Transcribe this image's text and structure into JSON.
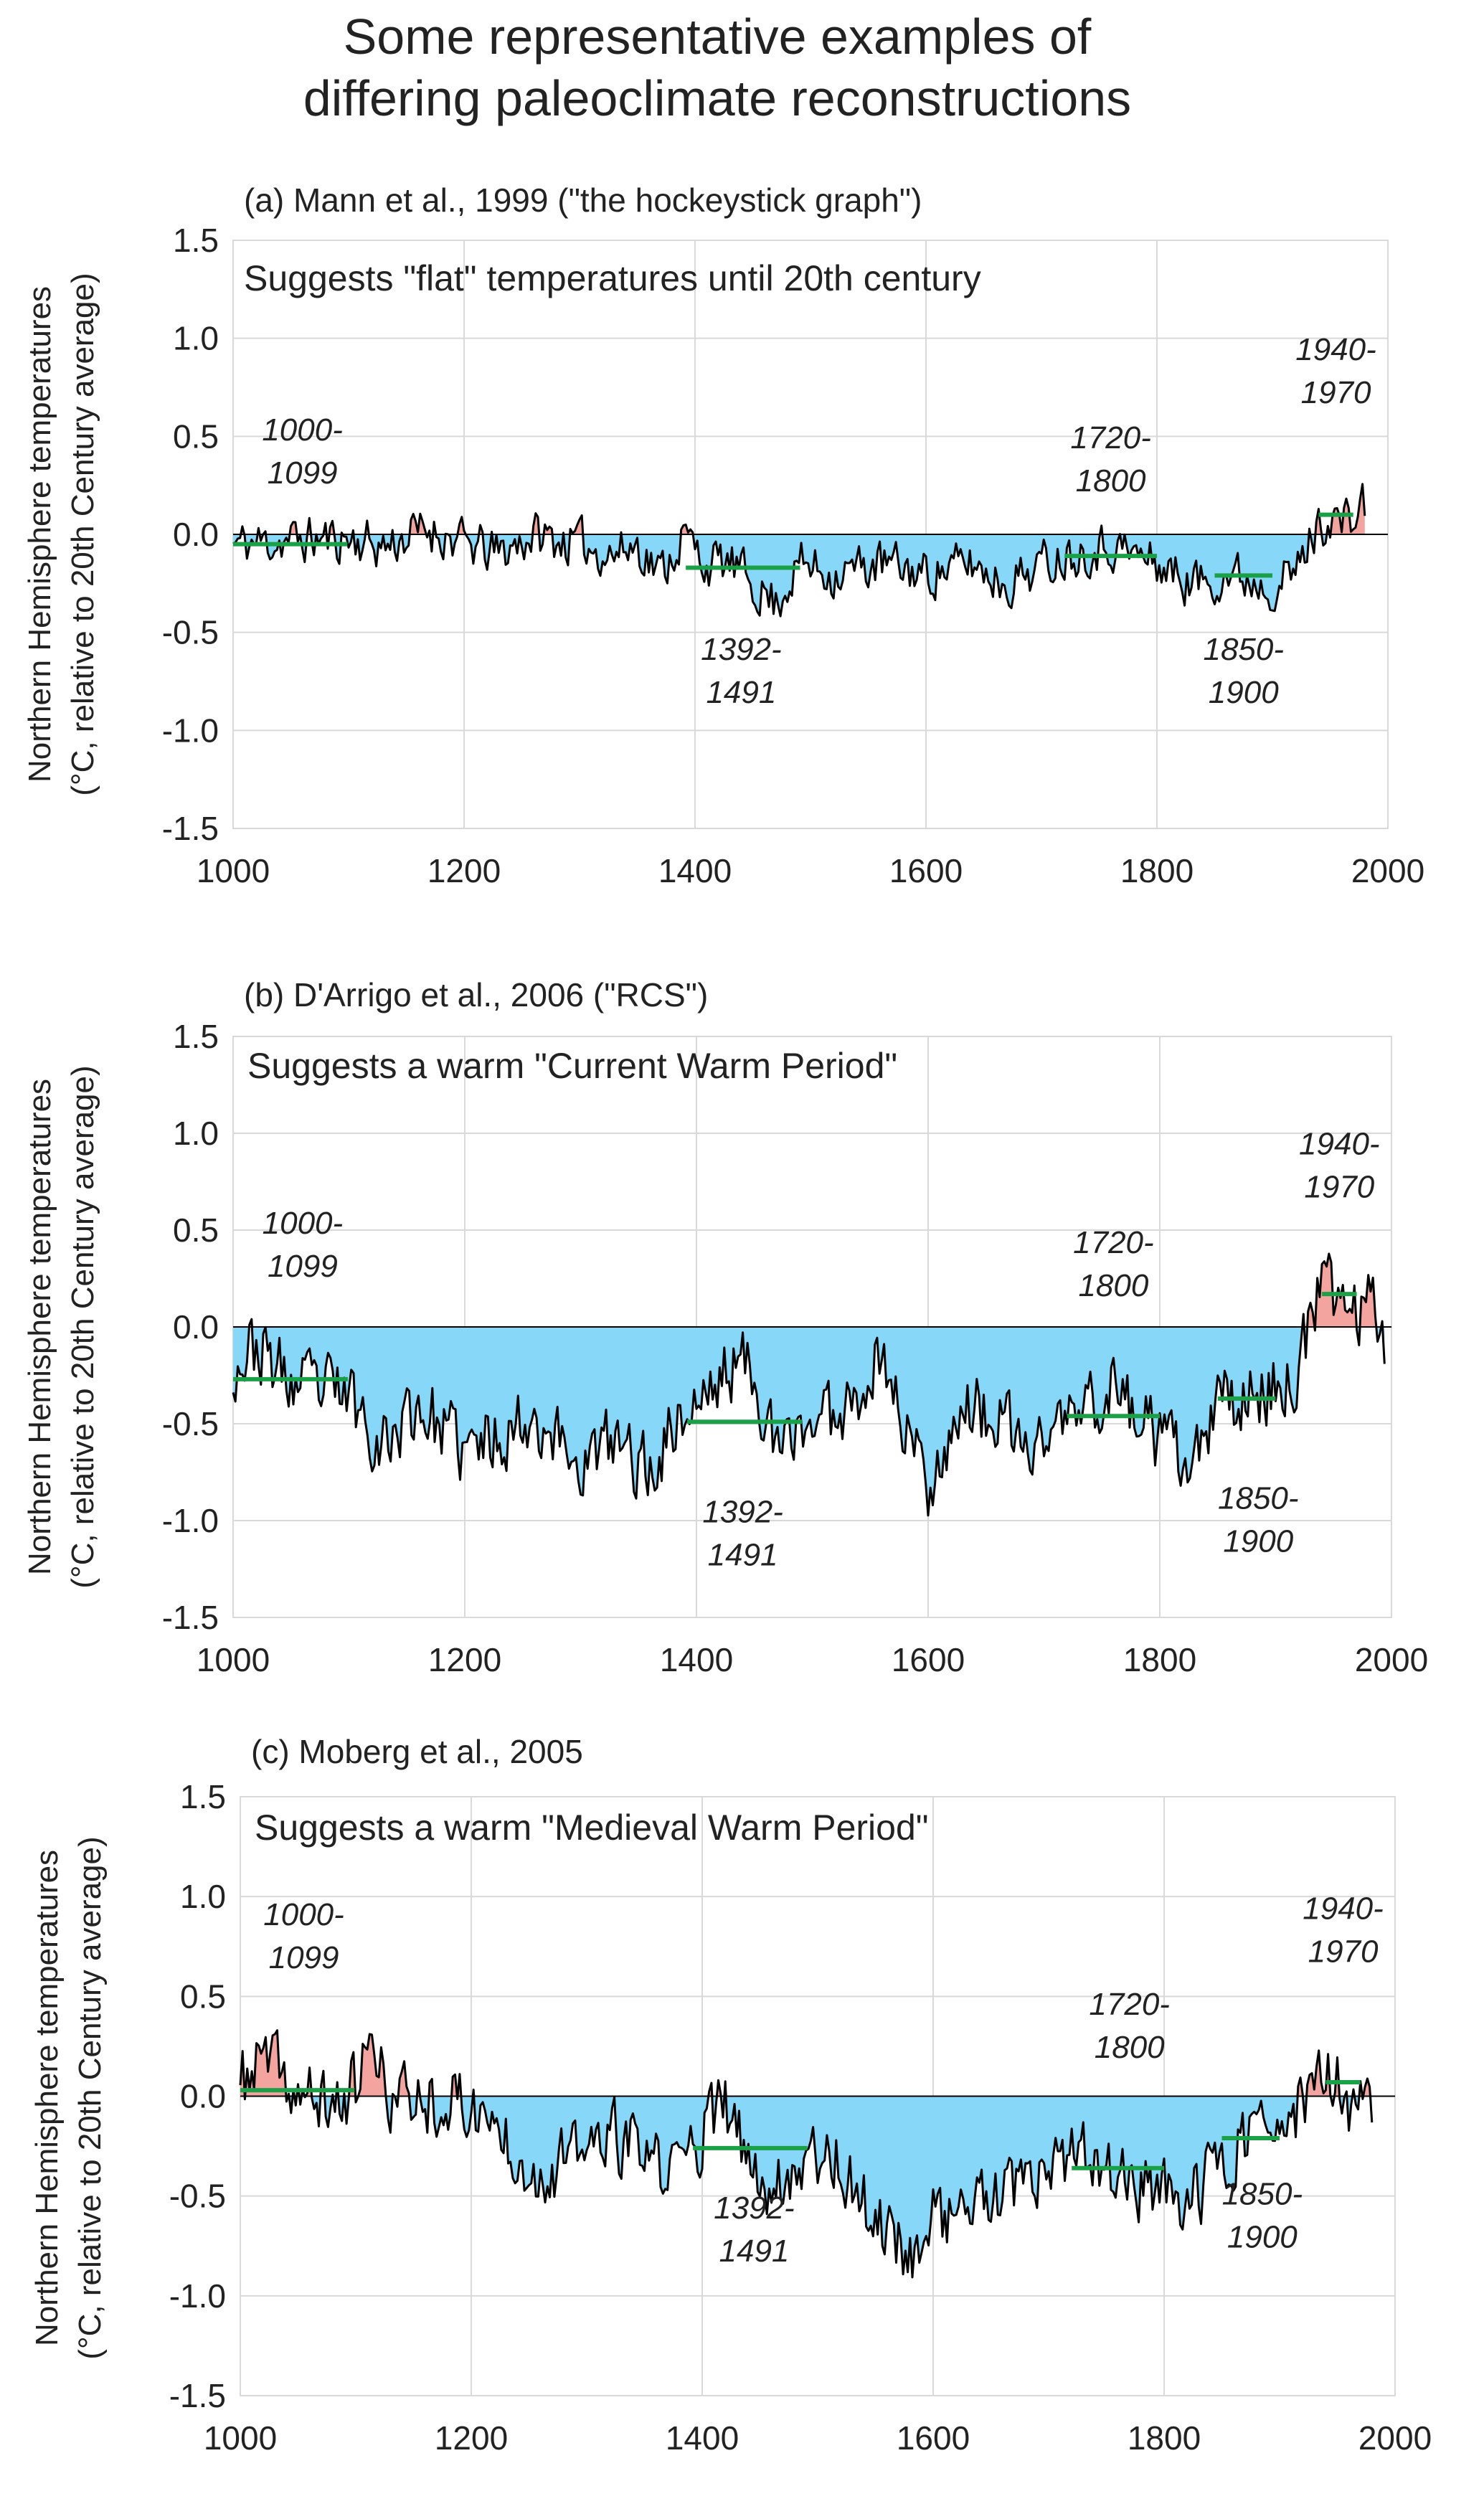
{
  "page_title": {
    "line1": "Some representative examples of",
    "line2": "differing paleoclimate reconstructions"
  },
  "colors": {
    "below_fill": "#87d8f8",
    "above_fill": "#f4a49e",
    "series_line": "#000000",
    "period_mean": "#1aa046",
    "grid": "#d9d9d9"
  },
  "chart_data": [
    {
      "type": "area",
      "title": "(a) Mann et al., 1999 (\"the hockeystick graph\")",
      "note": "Suggests \"flat\" temperatures until 20th century",
      "ylabel_line1": "Northern Hemisphere temperatures",
      "ylabel_line2": "(°C, relative to 20th Century average)",
      "xlim": [
        1000,
        2000
      ],
      "ylim": [
        -1.5,
        1.5
      ],
      "xticks": [
        "1000",
        "1200",
        "1400",
        "1600",
        "1800",
        "2000"
      ],
      "yticks": [
        "1.5",
        "1.0",
        "0.5",
        "0.0",
        "-0.5",
        "-1.0",
        "-1.5"
      ],
      "series_end": 1980,
      "anchors": [
        [
          1000,
          -0.05
        ],
        [
          1050,
          -0.03
        ],
        [
          1100,
          -0.02
        ],
        [
          1130,
          -0.06
        ],
        [
          1170,
          0.03
        ],
        [
          1200,
          -0.05
        ],
        [
          1230,
          -0.1
        ],
        [
          1260,
          0.0
        ],
        [
          1300,
          -0.05
        ],
        [
          1330,
          -0.1
        ],
        [
          1350,
          -0.05
        ],
        [
          1370,
          -0.2
        ],
        [
          1390,
          0.0
        ],
        [
          1410,
          -0.15
        ],
        [
          1430,
          -0.15
        ],
        [
          1450,
          -0.25
        ],
        [
          1470,
          -0.35
        ],
        [
          1490,
          -0.15
        ],
        [
          1520,
          -0.2
        ],
        [
          1560,
          -0.15
        ],
        [
          1600,
          -0.2
        ],
        [
          1640,
          -0.15
        ],
        [
          1670,
          -0.25
        ],
        [
          1700,
          -0.15
        ],
        [
          1720,
          -0.1
        ],
        [
          1760,
          -0.05
        ],
        [
          1800,
          -0.15
        ],
        [
          1830,
          -0.25
        ],
        [
          1860,
          -0.2
        ],
        [
          1900,
          -0.25
        ],
        [
          1920,
          -0.2
        ],
        [
          1935,
          0.0
        ],
        [
          1950,
          0.1
        ],
        [
          1965,
          0.05
        ],
        [
          1980,
          0.15
        ]
      ],
      "noise_amplitude": 0.11,
      "seed": 11,
      "periods": [
        {
          "label_top": "1000-",
          "label_bottom": "1099",
          "start": 1000,
          "end": 1099,
          "mean": -0.05,
          "label_x": 1060,
          "label_y": 0.37,
          "label_offset_y": 0
        },
        {
          "label_top": "1392-",
          "label_bottom": "1491",
          "start": 1392,
          "end": 1491,
          "mean": -0.17,
          "label_x": 1440,
          "label_y": -0.75,
          "label_offset_y": 0
        },
        {
          "label_top": "1720-",
          "label_bottom": "1800",
          "start": 1720,
          "end": 1800,
          "mean": -0.11,
          "label_x": 1760,
          "label_y": 0.33,
          "label_offset_y": 0
        },
        {
          "label_top": "1850-",
          "label_bottom": "1900",
          "start": 1850,
          "end": 1900,
          "mean": -0.21,
          "label_x": 1875,
          "label_y": -0.75,
          "label_offset_y": 0
        },
        {
          "label_top": "1940-",
          "label_bottom": "1970",
          "start": 1940,
          "end": 1970,
          "mean": 0.1,
          "label_x": 1955,
          "label_y": 0.78,
          "label_offset_y": 0
        }
      ]
    },
    {
      "type": "area",
      "title": "(b) D'Arrigo et al., 2006 (\"RCS\")",
      "note": "Suggests a warm \"Current Warm Period\"",
      "ylabel_line1": "Northern Hemisphere temperatures",
      "ylabel_line2": "(°C, relative to 20th Century average)",
      "xlim": [
        1000,
        2000
      ],
      "ylim": [
        -1.5,
        1.5
      ],
      "xticks": [
        "1000",
        "1200",
        "1400",
        "1600",
        "1800",
        "2000"
      ],
      "yticks": [
        "1.5",
        "1.0",
        "0.5",
        "0.0",
        "-0.5",
        "-1.0",
        "-1.5"
      ],
      "series_end": 1995,
      "anchors": [
        [
          1000,
          -0.2
        ],
        [
          1020,
          -0.1
        ],
        [
          1050,
          -0.3
        ],
        [
          1100,
          -0.35
        ],
        [
          1130,
          -0.6
        ],
        [
          1160,
          -0.4
        ],
        [
          1200,
          -0.65
        ],
        [
          1230,
          -0.55
        ],
        [
          1260,
          -0.45
        ],
        [
          1300,
          -0.7
        ],
        [
          1330,
          -0.6
        ],
        [
          1360,
          -0.75
        ],
        [
          1380,
          -0.5
        ],
        [
          1410,
          -0.35
        ],
        [
          1430,
          -0.2
        ],
        [
          1450,
          -0.2
        ],
        [
          1470,
          -0.7
        ],
        [
          1490,
          -0.5
        ],
        [
          1520,
          -0.45
        ],
        [
          1560,
          -0.15
        ],
        [
          1580,
          -0.5
        ],
        [
          1600,
          -0.8
        ],
        [
          1630,
          -0.4
        ],
        [
          1660,
          -0.5
        ],
        [
          1690,
          -0.65
        ],
        [
          1710,
          -0.5
        ],
        [
          1730,
          -0.45
        ],
        [
          1760,
          -0.3
        ],
        [
          1800,
          -0.6
        ],
        [
          1830,
          -0.75
        ],
        [
          1850,
          -0.4
        ],
        [
          1880,
          -0.35
        ],
        [
          1910,
          -0.3
        ],
        [
          1925,
          -0.1
        ],
        [
          1940,
          0.2
        ],
        [
          1960,
          0.15
        ],
        [
          1975,
          0.05
        ],
        [
          1985,
          0.25
        ],
        [
          1995,
          -0.1
        ]
      ],
      "noise_amplitude": 0.17,
      "seed": 23,
      "periods": [
        {
          "label_top": "1000-",
          "label_bottom": "1099",
          "start": 1000,
          "end": 1099,
          "mean": -0.27,
          "label_x": 1060,
          "label_y": 0.37,
          "label_offset_y": 0
        },
        {
          "label_top": "1392-",
          "label_bottom": "1491",
          "start": 1392,
          "end": 1491,
          "mean": -0.49,
          "label_x": 1440,
          "label_y": -1.12,
          "label_offset_y": 0
        },
        {
          "label_top": "1720-",
          "label_bottom": "1800",
          "start": 1720,
          "end": 1800,
          "mean": -0.46,
          "label_x": 1760,
          "label_y": 0.27,
          "label_offset_y": 0
        },
        {
          "label_top": "1850-",
          "label_bottom": "1900",
          "start": 1850,
          "end": 1900,
          "mean": -0.37,
          "label_x": 1885,
          "label_y": -1.05,
          "label_offset_y": 0
        },
        {
          "label_top": "1940-",
          "label_bottom": "1970",
          "start": 1940,
          "end": 1970,
          "mean": 0.17,
          "label_x": 1955,
          "label_y": 0.78,
          "label_offset_y": 0
        }
      ]
    },
    {
      "type": "area",
      "title": "(c) Moberg et al., 2005",
      "note": "Suggests a warm \"Medieval Warm Period\"",
      "ylabel_line1": "Northern Hemisphere temperatures",
      "ylabel_line2": "(°C, relative to 20th Century average)",
      "xlim": [
        1000,
        2000
      ],
      "ylim": [
        -1.5,
        1.5
      ],
      "xticks": [
        "1000",
        "1200",
        "1400",
        "1600",
        "1800",
        "2000"
      ],
      "yticks": [
        "1.5",
        "1.0",
        "0.5",
        "0.0",
        "-0.5",
        "-1.0",
        "-1.5"
      ],
      "series_end": 1980,
      "anchors": [
        [
          1000,
          0.05
        ],
        [
          1020,
          0.2
        ],
        [
          1050,
          0.0
        ],
        [
          1080,
          -0.05
        ],
        [
          1100,
          0.05
        ],
        [
          1110,
          0.25
        ],
        [
          1130,
          0.0
        ],
        [
          1160,
          0.0
        ],
        [
          1200,
          -0.05
        ],
        [
          1230,
          -0.2
        ],
        [
          1260,
          -0.4
        ],
        [
          1290,
          -0.3
        ],
        [
          1320,
          -0.2
        ],
        [
          1350,
          -0.3
        ],
        [
          1370,
          -0.4
        ],
        [
          1390,
          -0.25
        ],
        [
          1420,
          -0.05
        ],
        [
          1440,
          -0.35
        ],
        [
          1460,
          -0.45
        ],
        [
          1490,
          -0.3
        ],
        [
          1510,
          -0.25
        ],
        [
          1540,
          -0.55
        ],
        [
          1560,
          -0.65
        ],
        [
          1580,
          -0.8
        ],
        [
          1600,
          -0.6
        ],
        [
          1640,
          -0.55
        ],
        [
          1670,
          -0.5
        ],
        [
          1700,
          -0.4
        ],
        [
          1730,
          -0.3
        ],
        [
          1760,
          -0.4
        ],
        [
          1800,
          -0.5
        ],
        [
          1830,
          -0.5
        ],
        [
          1850,
          -0.3
        ],
        [
          1880,
          -0.15
        ],
        [
          1900,
          -0.25
        ],
        [
          1920,
          0.0
        ],
        [
          1935,
          0.05
        ],
        [
          1950,
          0.1
        ],
        [
          1960,
          -0.15
        ],
        [
          1980,
          0.0
        ]
      ],
      "noise_amplitude": 0.16,
      "seed": 37,
      "periods": [
        {
          "label_top": "1000-",
          "label_bottom": "1099",
          "start": 1000,
          "end": 1099,
          "mean": 0.03,
          "label_x": 1055,
          "label_y": 0.75,
          "label_offset_y": 0
        },
        {
          "label_top": "1392-",
          "label_bottom": "1491",
          "start": 1392,
          "end": 1491,
          "mean": -0.26,
          "label_x": 1445,
          "label_y": -0.72,
          "label_offset_y": 0
        },
        {
          "label_top": "1720-",
          "label_bottom": "1800",
          "start": 1720,
          "end": 1800,
          "mean": -0.36,
          "label_x": 1770,
          "label_y": 0.3,
          "label_offset_y": 0
        },
        {
          "label_top": "1850-",
          "label_bottom": "1900",
          "start": 1850,
          "end": 1900,
          "mean": -0.21,
          "label_x": 1885,
          "label_y": -0.65,
          "label_offset_y": 0
        },
        {
          "label_top": "1940-",
          "label_bottom": "1970",
          "start": 1940,
          "end": 1970,
          "mean": 0.07,
          "label_x": 1955,
          "label_y": 0.78,
          "label_offset_y": 0
        }
      ]
    }
  ]
}
